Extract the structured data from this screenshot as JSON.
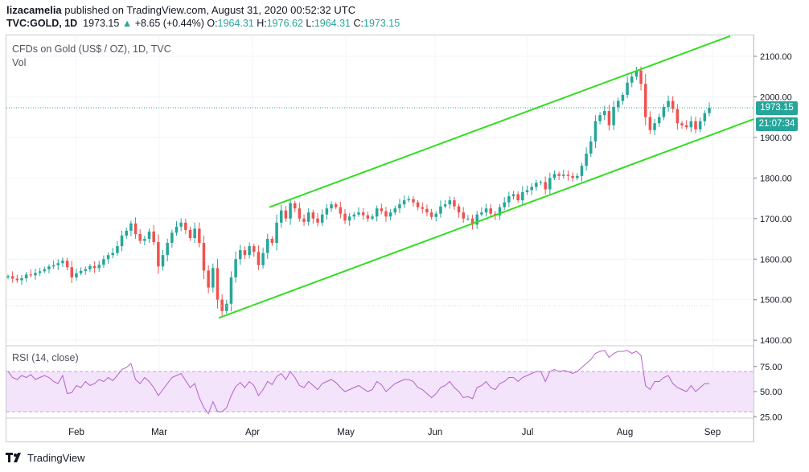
{
  "header": {
    "user": "lizacamelia",
    "published_text": " published on TradingView.com, August 31, 2020 00:52:32 UTC",
    "symbol": "TVC:GOLD, 1D",
    "last": "1973.15",
    "change_arrow": "▲",
    "change": "+8.65 (+0.44%)",
    "o_label": "O:",
    "o_val": "1964.31",
    "h_label": "H:",
    "h_val": "1976.62",
    "l_label": "L:",
    "l_val": "1964.31",
    "c_label": "C:",
    "c_val": "1973.15"
  },
  "chart_title": "CFDs on Gold (US$ / OZ), 1D, TVC",
  "vol_label": "Vol",
  "rsi_title": "RSI (14, close)",
  "badges": {
    "price": "1973.15",
    "countdown": "21:07:34"
  },
  "footer": {
    "brand": "TradingView"
  },
  "colors": {
    "up": "#26a69a",
    "down": "#ef5350",
    "channel": "#33dd22",
    "rsi_line": "#b462c9",
    "rsi_band": "#f3e3fb"
  },
  "chart_data": [
    {
      "type": "candlestick",
      "title": "CFDs on Gold (US$ / OZ), 1D, TVC",
      "x_tick_labels": [
        "Feb",
        "Mar",
        "Apr",
        "May",
        "Jun",
        "Jul",
        "Aug",
        "Sep"
      ],
      "y_ticks": [
        1400,
        1500,
        1600,
        1700,
        1800,
        1900,
        2000,
        2100
      ],
      "ylim": [
        1385,
        2160
      ],
      "last_price": 1973.15,
      "channel": {
        "upper": {
          "from": [
            "2020-04-14",
            1728
          ],
          "to": [
            "2020-08-31",
            2150
          ]
        },
        "lower": {
          "from": [
            "2020-03-19",
            1455
          ],
          "to": [
            "2020-08-31",
            1945
          ]
        }
      },
      "series_close": [
        1558,
        1552,
        1548,
        1553,
        1562,
        1560,
        1566,
        1570,
        1575,
        1582,
        1585,
        1590,
        1596,
        1580,
        1555,
        1565,
        1571,
        1575,
        1583,
        1578,
        1586,
        1600,
        1610,
        1615,
        1632,
        1658,
        1670,
        1688,
        1662,
        1645,
        1650,
        1668,
        1642,
        1582,
        1610,
        1640,
        1665,
        1680,
        1690,
        1672,
        1652,
        1675,
        1640,
        1572,
        1530,
        1578,
        1500,
        1472,
        1490,
        1555,
        1600,
        1622,
        1610,
        1632,
        1618,
        1585,
        1615,
        1650,
        1640,
        1690,
        1720,
        1700,
        1738,
        1725,
        1700,
        1692,
        1715,
        1700,
        1690,
        1710,
        1725,
        1735,
        1728,
        1712,
        1695,
        1705,
        1710,
        1715,
        1708,
        1700,
        1705,
        1725,
        1718,
        1705,
        1715,
        1725,
        1735,
        1745,
        1748,
        1740,
        1728,
        1724,
        1715,
        1704,
        1712,
        1730,
        1735,
        1745,
        1730,
        1715,
        1700,
        1700,
        1685,
        1710,
        1715,
        1725,
        1712,
        1708,
        1728,
        1740,
        1755,
        1760,
        1745,
        1765,
        1770,
        1778,
        1788,
        1790,
        1772,
        1800,
        1810,
        1805,
        1808,
        1805,
        1800,
        1805,
        1830,
        1860,
        1890,
        1940,
        1955,
        1965,
        1930,
        1975,
        1990,
        2005,
        2035,
        2050,
        2065,
        2032,
        1950,
        1918,
        1935,
        1950,
        1975,
        1990,
        1970,
        1935,
        1930,
        1925,
        1940,
        1920,
        1940,
        1960,
        1973
      ]
    },
    {
      "type": "line",
      "title": "RSI (14, close)",
      "y_ticks": [
        25,
        50,
        75
      ],
      "ylim": [
        24,
        84
      ],
      "bands": [
        30,
        70
      ],
      "series": [
        {
          "values": [
            70,
            64,
            62,
            66,
            64,
            67,
            62,
            64,
            66,
            64,
            60,
            58,
            66,
            48,
            49,
            56,
            54,
            60,
            56,
            58,
            62,
            60,
            64,
            61,
            66,
            72,
            74,
            78,
            62,
            58,
            64,
            60,
            54,
            46,
            52,
            58,
            64,
            66,
            68,
            61,
            54,
            58,
            44,
            34,
            28,
            40,
            30,
            30,
            34,
            46,
            55,
            59,
            54,
            60,
            56,
            46,
            52,
            60,
            57,
            65,
            68,
            62,
            70,
            64,
            56,
            54,
            60,
            56,
            52,
            58,
            60,
            62,
            59,
            54,
            50,
            52,
            54,
            56,
            53,
            50,
            52,
            60,
            57,
            50,
            54,
            58,
            60,
            62,
            62,
            60,
            54,
            52,
            48,
            44,
            48,
            54,
            56,
            60,
            54,
            50,
            44,
            45,
            43,
            54,
            56,
            60,
            54,
            52,
            58,
            60,
            64,
            64,
            60,
            64,
            66,
            68,
            70,
            70,
            60,
            70,
            72,
            70,
            71,
            70,
            68,
            70,
            74,
            78,
            82,
            88,
            90,
            91,
            84,
            88,
            90,
            90,
            91,
            88,
            90,
            86,
            56,
            52,
            60,
            60,
            64,
            66,
            58,
            54,
            52,
            50,
            56,
            50,
            54,
            58,
            58
          ]
        }
      ]
    }
  ]
}
